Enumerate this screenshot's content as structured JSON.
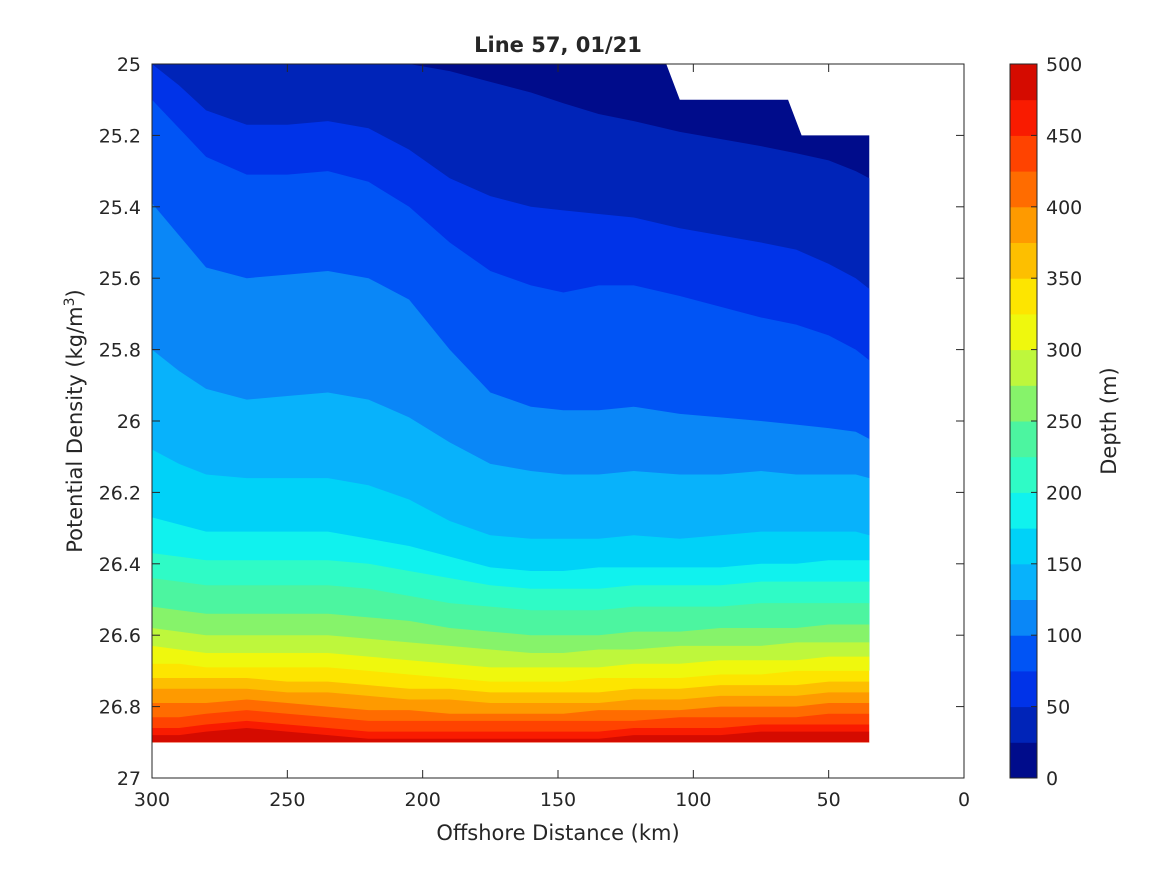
{
  "chart_data": {
    "type": "contour",
    "title": "Line 57, 01/21",
    "xlabel": "Offshore Distance (km)",
    "ylabel": "Potential Density (kg/m³)",
    "ylabel_parts": {
      "base": "Potential Density (kg/m",
      "sup": "3",
      "end": ")"
    },
    "x_reversed": true,
    "y_reversed": true,
    "xlim": [
      0,
      300
    ],
    "ylim": [
      25,
      27
    ],
    "x_ticks": [
      300,
      250,
      200,
      150,
      100,
      50,
      0
    ],
    "y_ticks": [
      25,
      25.2,
      25.4,
      25.6,
      25.8,
      26,
      26.2,
      26.4,
      26.6,
      26.8,
      27
    ],
    "x_tick_labels": [
      "300",
      "250",
      "200",
      "150",
      "100",
      "50",
      "0"
    ],
    "y_tick_labels": [
      "25",
      "25.2",
      "25.4",
      "25.6",
      "25.8",
      "26",
      "26.2",
      "26.4",
      "26.6",
      "26.8",
      "27"
    ],
    "colorbar": {
      "label": "Depth (m)",
      "range": [
        0,
        500
      ],
      "ticks": [
        0,
        50,
        100,
        150,
        200,
        250,
        300,
        350,
        400,
        450,
        500
      ],
      "tick_labels": [
        "0",
        "50",
        "100",
        "150",
        "200",
        "250",
        "300",
        "350",
        "400",
        "450",
        "500"
      ],
      "colors": [
        "#000c8b",
        "#0024b8",
        "#0033e8",
        "#0054f5",
        "#0a87f7",
        "#08b2fb",
        "#00d2f8",
        "#10f2ee",
        "#2ffbc6",
        "#4cf5a0",
        "#86f36a",
        "#bef73c",
        "#eff80d",
        "#fde500",
        "#fdbf00",
        "#fe9a00",
        "#ff6c00",
        "#ff4300",
        "#f91b00",
        "#d50b00"
      ]
    },
    "depth_levels": [
      25,
      50,
      75,
      100,
      125,
      150,
      175,
      200,
      225,
      250,
      275,
      300,
      325,
      350,
      375,
      400,
      425,
      450,
      475
    ],
    "band_order_note": "",
    "x": [
      300,
      290,
      280,
      265,
      250,
      235,
      220,
      205,
      190,
      175,
      160,
      148,
      135,
      122,
      105,
      90,
      75,
      62,
      50,
      40,
      35
    ],
    "contours": [
      [
        24.85,
        24.85,
        24.87,
        24.9,
        24.94,
        24.97,
        24.99,
        25.0,
        25.02,
        25.05,
        25.08,
        25.11,
        25.14,
        25.16,
        25.19,
        25.21,
        25.23,
        25.25,
        25.27,
        25.3,
        25.32
      ],
      [
        25.0,
        25.06,
        25.13,
        25.17,
        25.17,
        25.16,
        25.18,
        25.24,
        25.32,
        25.37,
        25.4,
        25.41,
        25.42,
        25.43,
        25.46,
        25.48,
        25.5,
        25.52,
        25.56,
        25.6,
        25.63
      ],
      [
        25.1,
        25.18,
        25.26,
        25.31,
        25.31,
        25.3,
        25.33,
        25.4,
        25.5,
        25.58,
        25.62,
        25.64,
        25.62,
        25.62,
        25.65,
        25.68,
        25.71,
        25.73,
        25.76,
        25.8,
        25.83
      ],
      [
        25.39,
        25.48,
        25.57,
        25.6,
        25.59,
        25.58,
        25.6,
        25.66,
        25.8,
        25.92,
        25.96,
        25.97,
        25.97,
        25.96,
        25.98,
        25.99,
        26.0,
        26.01,
        26.02,
        26.03,
        26.05
      ],
      [
        25.8,
        25.86,
        25.91,
        25.94,
        25.93,
        25.92,
        25.94,
        25.99,
        26.06,
        26.12,
        26.14,
        26.15,
        26.15,
        26.14,
        26.15,
        26.15,
        26.14,
        26.15,
        26.15,
        26.15,
        26.16
      ],
      [
        26.08,
        26.12,
        26.15,
        26.16,
        26.16,
        26.16,
        26.18,
        26.22,
        26.28,
        26.32,
        26.33,
        26.33,
        26.33,
        26.32,
        26.33,
        26.32,
        26.31,
        26.31,
        26.31,
        26.31,
        26.32
      ],
      [
        26.27,
        26.29,
        26.31,
        26.31,
        26.31,
        26.31,
        26.33,
        26.35,
        26.38,
        26.41,
        26.42,
        26.42,
        26.41,
        26.41,
        26.41,
        26.41,
        26.4,
        26.4,
        26.39,
        26.39,
        26.39
      ],
      [
        26.37,
        26.38,
        26.39,
        26.39,
        26.39,
        26.39,
        26.4,
        26.42,
        26.44,
        26.46,
        26.47,
        26.47,
        26.47,
        26.46,
        26.46,
        26.46,
        26.45,
        26.45,
        26.45,
        26.45,
        26.45
      ],
      [
        26.44,
        26.45,
        26.46,
        26.46,
        26.46,
        26.46,
        26.47,
        26.49,
        26.51,
        26.52,
        26.53,
        26.53,
        26.53,
        26.52,
        26.52,
        26.52,
        26.51,
        26.51,
        26.51,
        26.51,
        26.51
      ],
      [
        26.52,
        26.53,
        26.54,
        26.54,
        26.54,
        26.54,
        26.55,
        26.56,
        26.58,
        26.59,
        26.6,
        26.6,
        26.6,
        26.59,
        26.59,
        26.58,
        26.58,
        26.58,
        26.57,
        26.57,
        26.57
      ],
      [
        26.58,
        26.59,
        26.6,
        26.6,
        26.6,
        26.6,
        26.61,
        26.62,
        26.63,
        26.64,
        26.65,
        26.65,
        26.64,
        26.64,
        26.63,
        26.63,
        26.63,
        26.62,
        26.62,
        26.62,
        26.62
      ],
      [
        26.63,
        26.64,
        26.65,
        26.65,
        26.65,
        26.65,
        26.66,
        26.67,
        26.68,
        26.69,
        26.69,
        26.69,
        26.69,
        26.68,
        26.68,
        26.67,
        26.67,
        26.67,
        26.66,
        26.66,
        26.66
      ],
      [
        26.68,
        26.68,
        26.69,
        26.69,
        26.69,
        26.69,
        26.7,
        26.71,
        26.72,
        26.73,
        26.73,
        26.73,
        26.72,
        26.72,
        26.72,
        26.71,
        26.71,
        26.7,
        26.7,
        26.7,
        26.7
      ],
      [
        26.72,
        26.72,
        26.72,
        26.72,
        26.73,
        26.73,
        26.74,
        26.75,
        26.75,
        26.76,
        26.76,
        26.76,
        26.76,
        26.75,
        26.75,
        26.74,
        26.74,
        26.74,
        26.73,
        26.73,
        26.73
      ],
      [
        26.75,
        26.75,
        26.75,
        26.75,
        26.76,
        26.76,
        26.77,
        26.78,
        26.78,
        26.79,
        26.79,
        26.79,
        26.79,
        26.78,
        26.78,
        26.77,
        26.77,
        26.77,
        26.76,
        26.76,
        26.76
      ],
      [
        26.79,
        26.79,
        26.79,
        26.78,
        26.79,
        26.8,
        26.81,
        26.81,
        26.82,
        26.82,
        26.82,
        26.82,
        26.81,
        26.81,
        26.81,
        26.8,
        26.8,
        26.8,
        26.79,
        26.79,
        26.79
      ],
      [
        26.83,
        26.83,
        26.82,
        26.81,
        26.82,
        26.83,
        26.84,
        26.84,
        26.84,
        26.84,
        26.84,
        26.84,
        26.84,
        26.84,
        26.83,
        26.83,
        26.83,
        26.83,
        26.82,
        26.82,
        26.82
      ],
      [
        26.86,
        26.86,
        26.85,
        26.84,
        26.85,
        26.86,
        26.87,
        26.87,
        26.87,
        26.87,
        26.87,
        26.87,
        26.87,
        26.86,
        26.86,
        26.86,
        26.85,
        26.85,
        26.85,
        26.85,
        26.85
      ],
      [
        26.88,
        26.88,
        26.87,
        26.86,
        26.87,
        26.88,
        26.89,
        26.89,
        26.89,
        26.89,
        26.89,
        26.89,
        26.89,
        26.88,
        26.88,
        26.88,
        26.87,
        26.87,
        26.87,
        26.87,
        26.87
      ]
    ],
    "data_bottom": 26.9,
    "data_xmin": 35,
    "top_void": [
      [
        0,
        25.38
      ],
      [
        0,
        25.3
      ],
      [
        25,
        25.3
      ],
      [
        30,
        25.2
      ],
      [
        60,
        25.2
      ],
      [
        65,
        25.1
      ],
      [
        105,
        25.1
      ],
      [
        110,
        25.0
      ],
      [
        0,
        25.0
      ]
    ],
    "shelf_void": [
      [
        0,
        25.4
      ],
      [
        5,
        25.5
      ],
      [
        5,
        25.9
      ],
      [
        30,
        26.4
      ],
      [
        30,
        26.6
      ],
      [
        35,
        26.7
      ],
      [
        35,
        26.9
      ],
      [
        0,
        26.9
      ]
    ],
    "grid": false,
    "legend": "none"
  }
}
